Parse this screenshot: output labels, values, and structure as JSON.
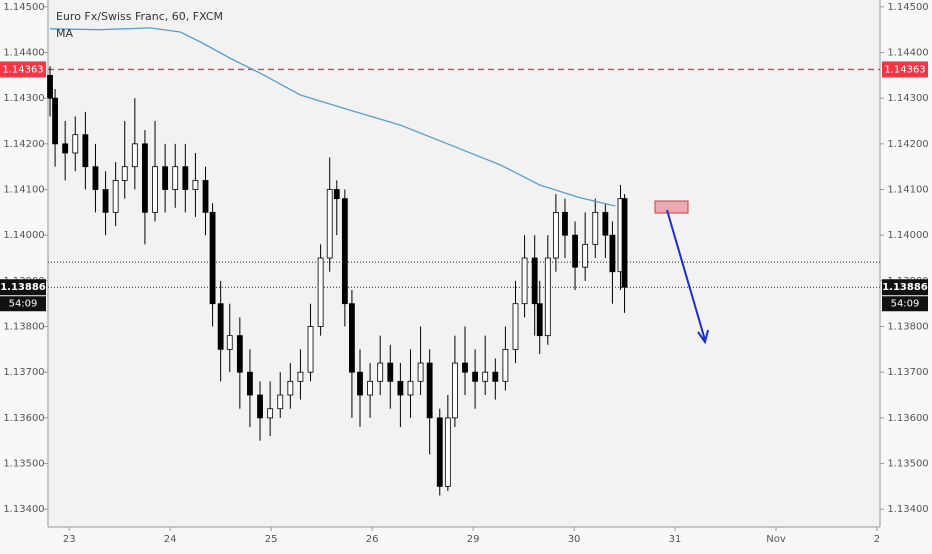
{
  "chart_data": {
    "type": "candlestick",
    "title": "Euro Fx/Swiss Franc, 60, FXCM",
    "indicator": "MA",
    "x": [
      -0.19,
      -0.14,
      -0.04,
      0.06,
      0.16,
      0.26,
      0.36,
      0.46,
      0.55,
      0.65,
      0.75,
      0.85,
      0.95,
      1.05,
      1.15,
      1.25,
      1.35,
      1.42,
      1.5,
      1.59,
      1.69,
      1.79,
      1.89,
      1.99,
      2.09,
      2.19,
      2.29,
      2.39,
      2.49,
      2.58,
      2.65,
      2.73,
      2.8,
      2.88,
      2.98,
      3.08,
      3.18,
      3.28,
      3.38,
      3.48,
      3.57,
      3.67,
      3.75,
      3.82,
      3.92,
      4.02,
      4.12,
      4.22,
      4.32,
      4.42,
      4.51,
      4.61,
      4.66,
      4.74,
      4.82,
      4.91,
      5.01,
      5.11,
      5.21,
      5.31,
      5.38,
      5.46,
      5.5
    ],
    "open": [
      1.1435,
      1.143,
      1.142,
      1.1418,
      1.1422,
      1.1415,
      1.141,
      1.1405,
      1.1412,
      1.1415,
      1.142,
      1.1405,
      1.1415,
      1.141,
      1.1415,
      1.141,
      1.1412,
      1.1405,
      1.1385,
      1.1375,
      1.1378,
      1.137,
      1.1365,
      1.136,
      1.1362,
      1.1365,
      1.1368,
      1.137,
      1.138,
      1.1395,
      1.141,
      1.1408,
      1.1385,
      1.137,
      1.1365,
      1.1368,
      1.1372,
      1.1368,
      1.1365,
      1.1368,
      1.1372,
      1.136,
      1.1345,
      1.136,
      1.1372,
      1.137,
      1.1368,
      1.137,
      1.1368,
      1.1375,
      1.1385,
      1.1395,
      1.1385,
      1.1378,
      1.1395,
      1.1405,
      1.14,
      1.1393,
      1.1398,
      1.1405,
      1.14,
      1.1392,
      1.1408
    ],
    "high": [
      1.1437,
      1.1432,
      1.1425,
      1.1426,
      1.1427,
      1.142,
      1.1414,
      1.1416,
      1.1425,
      1.143,
      1.1423,
      1.1425,
      1.142,
      1.142,
      1.142,
      1.1418,
      1.1415,
      1.1407,
      1.139,
      1.1385,
      1.1382,
      1.1375,
      1.1368,
      1.1368,
      1.137,
      1.1372,
      1.1375,
      1.1385,
      1.1398,
      1.1417,
      1.1412,
      1.141,
      1.1388,
      1.1375,
      1.1372,
      1.1378,
      1.1376,
      1.1372,
      1.1375,
      1.138,
      1.1375,
      1.1362,
      1.1365,
      1.1378,
      1.138,
      1.1375,
      1.1378,
      1.1373,
      1.138,
      1.139,
      1.14,
      1.14,
      1.139,
      1.14,
      1.1409,
      1.1408,
      1.1403,
      1.1405,
      1.1408,
      1.1407,
      1.1403,
      1.1411,
      1.1409
    ],
    "low": [
      1.1426,
      1.1415,
      1.1412,
      1.1414,
      1.141,
      1.1405,
      1.14,
      1.1402,
      1.1408,
      1.141,
      1.1398,
      1.1403,
      1.1405,
      1.1406,
      1.1405,
      1.1404,
      1.14,
      1.138,
      1.1368,
      1.137,
      1.1362,
      1.1358,
      1.1355,
      1.1356,
      1.136,
      1.1362,
      1.1364,
      1.1368,
      1.1378,
      1.1392,
      1.14,
      1.138,
      1.136,
      1.1358,
      1.136,
      1.1365,
      1.1362,
      1.1358,
      1.136,
      1.1365,
      1.1352,
      1.1343,
      1.1344,
      1.1358,
      1.1365,
      1.1362,
      1.1365,
      1.1364,
      1.1366,
      1.1372,
      1.1382,
      1.1378,
      1.1374,
      1.1376,
      1.1392,
      1.1395,
      1.1388,
      1.139,
      1.1395,
      1.1395,
      1.1385,
      1.1388,
      1.1383
    ],
    "close": [
      1.143,
      1.142,
      1.1418,
      1.1422,
      1.1415,
      1.141,
      1.1405,
      1.1412,
      1.1415,
      1.142,
      1.1405,
      1.1415,
      1.141,
      1.1415,
      1.141,
      1.1412,
      1.1405,
      1.1385,
      1.1375,
      1.1378,
      1.137,
      1.1365,
      1.136,
      1.1362,
      1.1365,
      1.1368,
      1.137,
      1.138,
      1.1395,
      1.141,
      1.1408,
      1.1385,
      1.137,
      1.1365,
      1.1368,
      1.1372,
      1.1368,
      1.1365,
      1.1368,
      1.1372,
      1.136,
      1.1345,
      1.136,
      1.1372,
      1.137,
      1.1368,
      1.137,
      1.1368,
      1.1375,
      1.1385,
      1.1395,
      1.1385,
      1.1378,
      1.1395,
      1.1405,
      1.14,
      1.1393,
      1.1398,
      1.1405,
      1.14,
      1.1392,
      1.1408,
      1.13886
    ],
    "ma": {
      "color": "#5b9ec9",
      "x": [
        -0.19,
        0.31,
        0.8,
        1.1,
        1.3,
        1.59,
        1.89,
        2.29,
        2.78,
        3.28,
        3.77,
        4.27,
        4.66,
        5.06,
        5.41
      ],
      "values": [
        1.14452,
        1.1445,
        1.14454,
        1.14445,
        1.14423,
        1.14388,
        1.14355,
        1.14307,
        1.14274,
        1.14241,
        1.14198,
        1.14154,
        1.1411,
        1.14082,
        1.14064
      ]
    },
    "resistance": {
      "value": 1.14363,
      "label": "1.14363",
      "color": "#f23645"
    },
    "price_line": {
      "value": 1.13886,
      "label": "1.13886",
      "countdown": "54:09"
    },
    "level_line": 1.13941,
    "xlim": [
      -0.21,
      8.03
    ],
    "ylim": [
      1.13361,
      1.14515
    ],
    "xticks": [
      {
        "value": 0,
        "label": "23"
      },
      {
        "value": 1,
        "label": "24"
      },
      {
        "value": 2,
        "label": "25"
      },
      {
        "value": 3,
        "label": "26"
      },
      {
        "value": 4,
        "label": "29"
      },
      {
        "value": 5,
        "label": "30"
      },
      {
        "value": 6,
        "label": "31"
      },
      {
        "value": 7,
        "label": "Nov"
      },
      {
        "value": 8,
        "label": "2"
      }
    ],
    "yticks": [
      {
        "value": 1.134,
        "label": "1.13400"
      },
      {
        "value": 1.135,
        "label": "1.13500"
      },
      {
        "value": 1.136,
        "label": "1.13600"
      },
      {
        "value": 1.137,
        "label": "1.13700"
      },
      {
        "value": 1.138,
        "label": "1.13800"
      },
      {
        "value": 1.139,
        "label": "1.13900"
      },
      {
        "value": 1.14,
        "label": "1.14000"
      },
      {
        "value": 1.141,
        "label": "1.14100"
      },
      {
        "value": 1.142,
        "label": "1.14200"
      },
      {
        "value": 1.143,
        "label": "1.14300"
      },
      {
        "value": 1.144,
        "label": "1.14400"
      },
      {
        "value": 1.145,
        "label": "1.14500"
      }
    ]
  }
}
